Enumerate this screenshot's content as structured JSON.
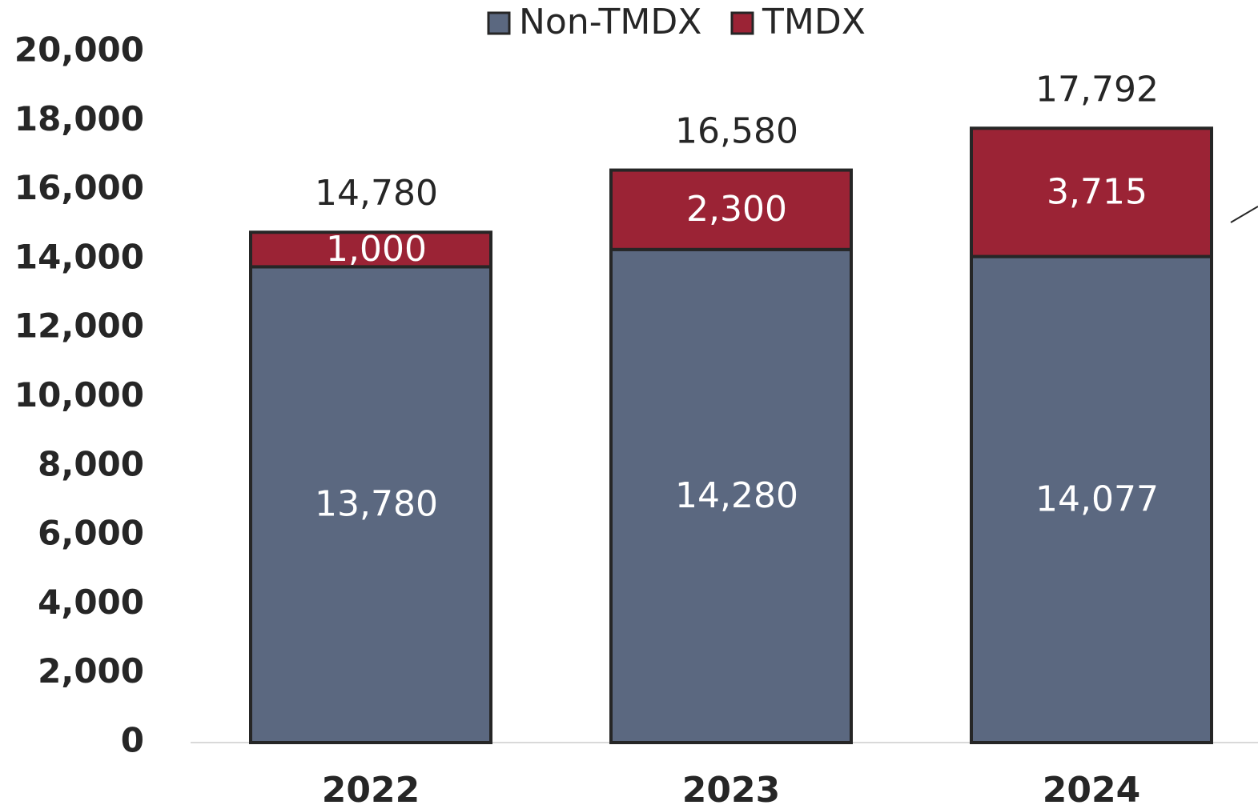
{
  "chart_data": {
    "type": "stacked_bar",
    "categories": [
      "2022",
      "2023",
      "2024"
    ],
    "series": [
      {
        "name": "Non-TMDX",
        "color": "#5b6880",
        "values": [
          13780,
          14280,
          14077
        ],
        "value_labels": [
          "13,780",
          "14,280",
          "14,077"
        ]
      },
      {
        "name": "TMDX",
        "color": "#9b2335",
        "values": [
          1000,
          2300,
          3715
        ],
        "value_labels": [
          "1,000",
          "2,300",
          "3,715"
        ]
      }
    ],
    "totals": [
      14780,
      16580,
      17792
    ],
    "total_labels": [
      "14,780",
      "16,580",
      "17,792"
    ],
    "ylim": [
      0,
      20000
    ],
    "yticks": [
      0,
      {
        "value": 2000,
        "label": "2,000"
      },
      {
        "value": 4000,
        "label": "4,000"
      },
      {
        "value": 6000,
        "label": "6,000"
      },
      {
        "value": 8000,
        "label": "8,000"
      },
      {
        "value": 10000,
        "label": "10,000"
      },
      {
        "value": 12000,
        "label": "12,000"
      },
      {
        "value": 14000,
        "label": "14,000"
      },
      {
        "value": 16000,
        "label": "16,000"
      },
      {
        "value": 18000,
        "label": "18,000"
      },
      {
        "value": 20000,
        "label": "20,000"
      }
    ],
    "grid": false,
    "legend": "top"
  }
}
